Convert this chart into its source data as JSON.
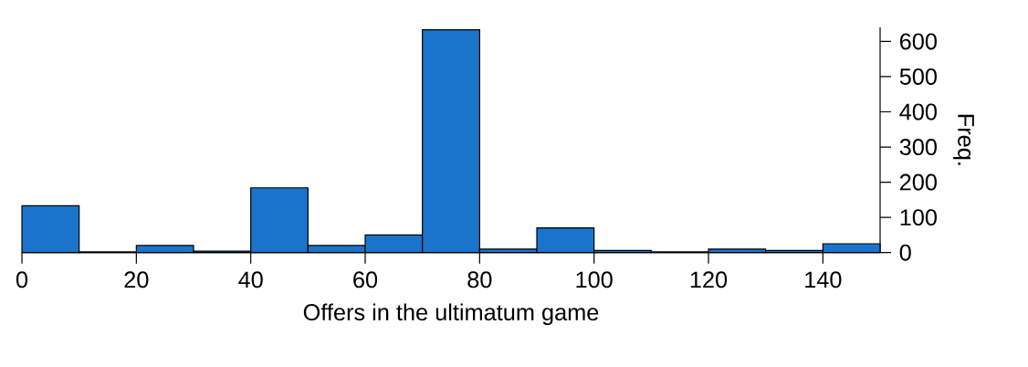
{
  "chart_data": {
    "type": "histogram",
    "xlabel": "Offers in the ultimatum game",
    "ylabel": "Freq.",
    "bins": [
      0,
      10,
      20,
      30,
      40,
      50,
      60,
      70,
      80,
      90,
      100,
      110,
      120,
      130,
      140,
      150
    ],
    "values": [
      133,
      2,
      20,
      4,
      184,
      20,
      50,
      633,
      10,
      70,
      6,
      2,
      10,
      6,
      25
    ],
    "color": "#1b74cc",
    "xlim": [
      0,
      150
    ],
    "xticks": [
      0,
      20,
      40,
      60,
      80,
      100,
      120,
      140
    ],
    "ylim": [
      0,
      640
    ],
    "yticks": [
      0,
      100,
      200,
      300,
      400,
      500,
      600
    ],
    "grid": false
  }
}
